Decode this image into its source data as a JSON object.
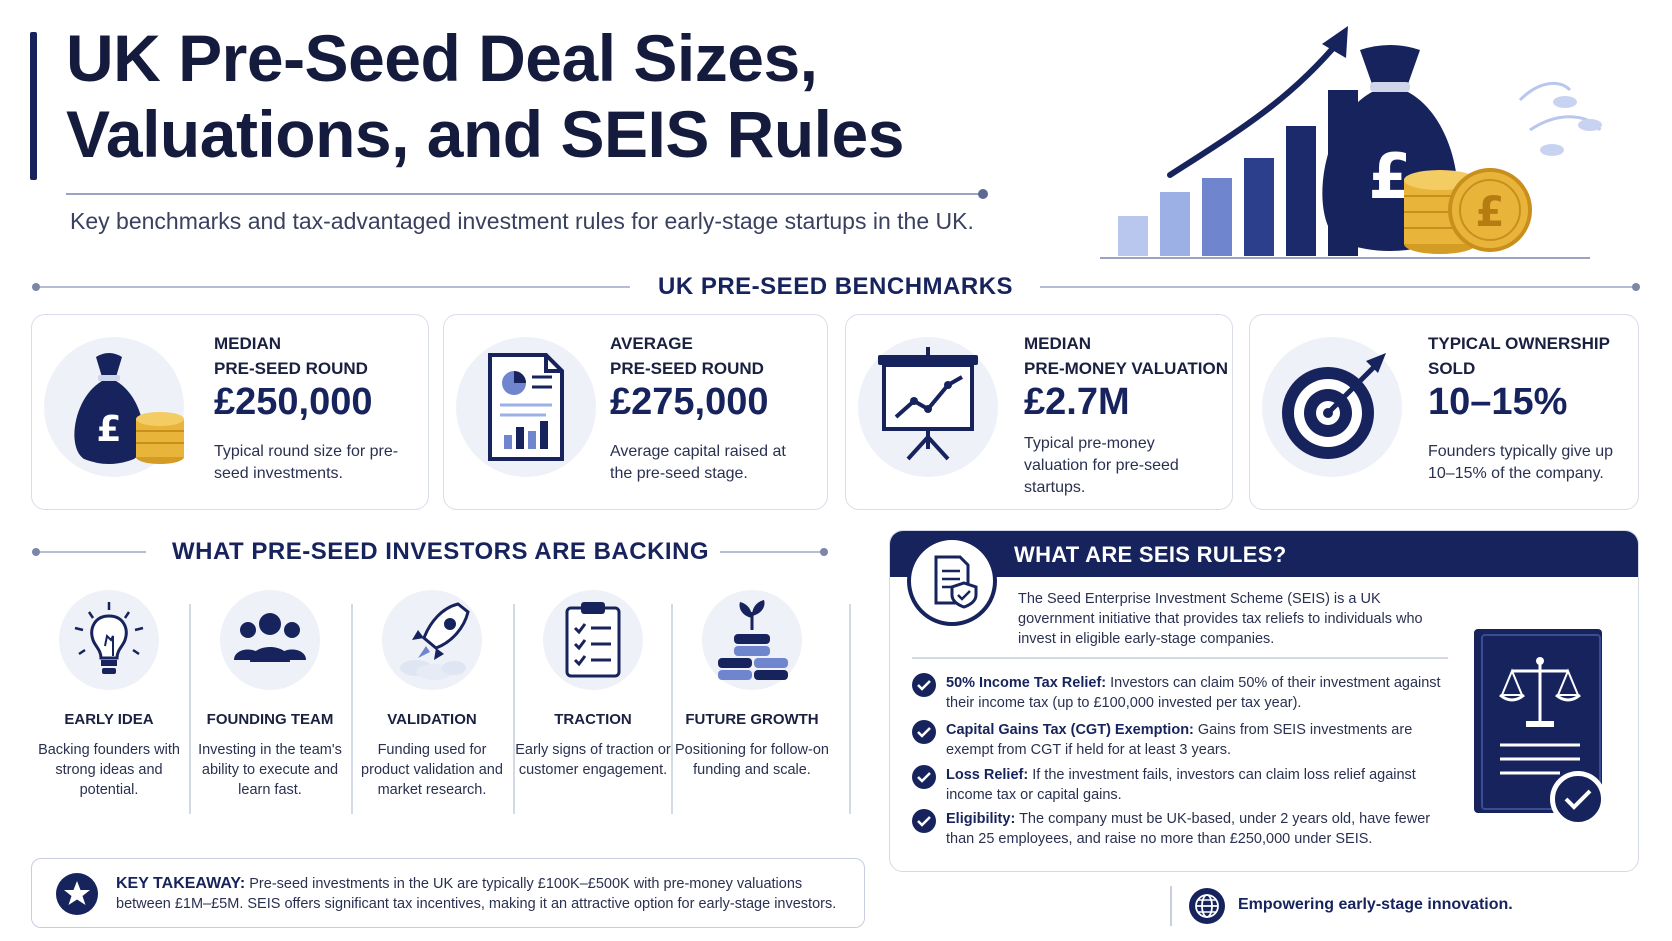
{
  "header": {
    "title": "UK Pre-Seed Deal Sizes, Valuations, and SEIS Rules",
    "subtitle": "Key benchmarks and tax-advantaged investment rules for early-stage startups in the UK."
  },
  "benchmarks": {
    "heading": "UK PRE-SEED BENCHMARKS",
    "cards": [
      {
        "icon": "money-bag-icon",
        "label": "MEDIAN\nPRE-SEED ROUND",
        "value": "£250,000",
        "desc": "Typical round size for pre-seed investments."
      },
      {
        "icon": "report-chart-icon",
        "label": "AVERAGE\nPRE-SEED ROUND",
        "value": "£275,000",
        "desc": "Average capital raised at the pre-seed stage."
      },
      {
        "icon": "presentation-board-icon",
        "label": "MEDIAN\nPRE-MONEY VALUATION",
        "value": "£2.7M",
        "desc": "Typical pre-money valuation for pre-seed startups."
      },
      {
        "icon": "target-icon",
        "label": "TYPICAL OWNERSHIP\nSOLD",
        "value": "10–15%",
        "desc": "Founders typically give up 10–15% of the company."
      }
    ]
  },
  "backing": {
    "heading": "WHAT PRE-SEED INVESTORS ARE BACKING",
    "items": [
      {
        "icon": "lightbulb-icon",
        "title": "EARLY IDEA",
        "desc": "Backing founders with strong ideas and potential."
      },
      {
        "icon": "team-icon",
        "title": "FOUNDING TEAM",
        "desc": "Investing in the team's ability to execute and learn fast."
      },
      {
        "icon": "rocket-icon",
        "title": "VALIDATION",
        "desc": "Funding used for product validation and market research."
      },
      {
        "icon": "clipboard-icon",
        "title": "TRACTION",
        "desc": "Early signs of traction or customer engagement."
      },
      {
        "icon": "coin-stacks-icon",
        "title": "FUTURE GROWTH",
        "desc": "Positioning for follow-on funding and scale."
      }
    ]
  },
  "takeaway": {
    "label": "KEY TAKEAWAY:",
    "text": "Pre-seed investments in the UK are typically £100K–£500K with pre-money valuations between £1M–£5M. SEIS offers significant tax incentives, making it an attractive option for early-stage investors."
  },
  "seis": {
    "heading": "WHAT ARE SEIS RULES?",
    "intro": "The Seed Enterprise Investment Scheme (SEIS) is a UK government initiative that provides tax reliefs to individuals who invest in eligible early-stage companies.",
    "rules": [
      {
        "title": "50% Income Tax Relief:",
        "text": "Investors can claim 50% of their investment against their income tax (up to £100,000 invested per tax year)."
      },
      {
        "title": "Capital Gains Tax (CGT) Exemption:",
        "text": "Gains from SEIS investments are exempt from CGT if held for at least 3 years."
      },
      {
        "title": "Loss Relief:",
        "text": "If the investment fails, investors can claim loss relief against income tax or capital gains."
      },
      {
        "title": "Eligibility:",
        "text": "The company must be UK-based, under 2 years old, have fewer than 25 employees, and raise no more than £250,000 under SEIS."
      }
    ]
  },
  "footer": {
    "icon": "globe-icon",
    "text": "Empowering early-stage innovation."
  },
  "colors": {
    "navy": "#17235c",
    "light_blue": "#8fa3dd",
    "gold": "#e8b53a",
    "icon_bg": "#eef1f8"
  }
}
